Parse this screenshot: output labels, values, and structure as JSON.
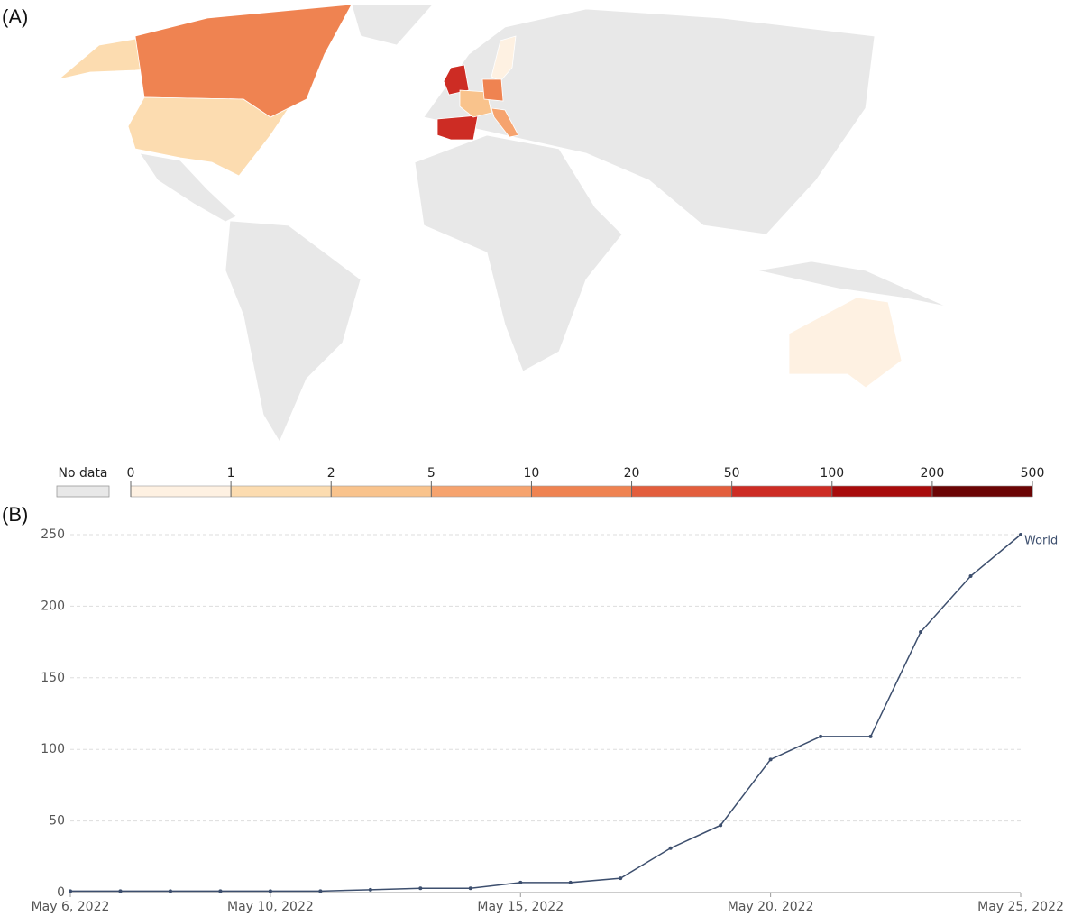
{
  "chart_data": [
    {
      "type": "map",
      "panel_label": "(A)",
      "legend": {
        "no_data_label": "No data",
        "no_data_color": "#e8e8e8",
        "bins": [
          0,
          1,
          2,
          5,
          10,
          20,
          50,
          100,
          200,
          500
        ],
        "colors": [
          "#fef1e2",
          "#fcdcb0",
          "#f9c38c",
          "#f6a36e",
          "#ef8351",
          "#e35e3d",
          "#cd2c24",
          "#a80b0b",
          "#6b0404"
        ]
      }
    },
    {
      "type": "line",
      "panel_label": "(B)",
      "x": [
        "2022-05-06",
        "2022-05-07",
        "2022-05-08",
        "2022-05-09",
        "2022-05-10",
        "2022-05-11",
        "2022-05-12",
        "2022-05-13",
        "2022-05-14",
        "2022-05-15",
        "2022-05-16",
        "2022-05-17",
        "2022-05-18",
        "2022-05-19",
        "2022-05-20",
        "2022-05-21",
        "2022-05-22",
        "2022-05-23",
        "2022-05-24",
        "2022-05-25"
      ],
      "series": [
        {
          "name": "World",
          "color": "#3d4f6e",
          "values": [
            1,
            1,
            1,
            1,
            1,
            1,
            2,
            3,
            3,
            7,
            7,
            10,
            31,
            47,
            93,
            109,
            109,
            182,
            221,
            250
          ]
        }
      ],
      "xlim": [
        "2022-05-06",
        "2022-05-25"
      ],
      "xticks": [
        {
          "value": "2022-05-06",
          "label": "May 6, 2022"
        },
        {
          "value": "2022-05-10",
          "label": "May 10, 2022"
        },
        {
          "value": "2022-05-15",
          "label": "May 15, 2022"
        },
        {
          "value": "2022-05-20",
          "label": "May 20, 2022"
        },
        {
          "value": "2022-05-25",
          "label": "May 25, 2022"
        }
      ],
      "ylim": [
        0,
        250
      ],
      "yticks": [
        0,
        50,
        100,
        150,
        200,
        250
      ],
      "grid": true
    }
  ]
}
